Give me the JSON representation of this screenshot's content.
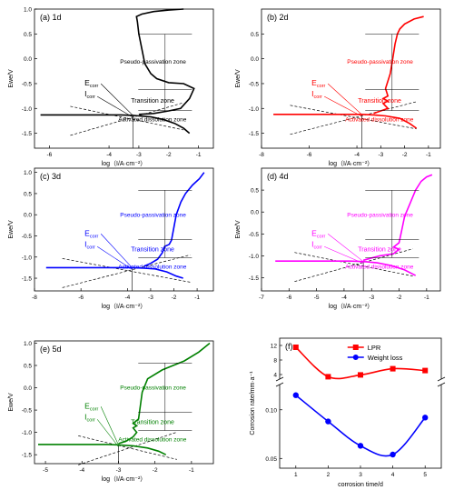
{
  "chart_data": [
    {
      "type": "line",
      "panel_label": "(a) 1d",
      "xlabel": "log（I/A·cm⁻²）",
      "ylabel": "Ewe/V",
      "xlim": [
        -6.5,
        -0.5
      ],
      "ylim": [
        -1.8,
        1.0
      ],
      "xticks": [
        -6,
        -4,
        -3,
        -2,
        -1
      ],
      "yticks": [
        -1.5,
        -1.0,
        -0.5,
        0.0,
        0.5,
        1.0
      ],
      "color": "#000000",
      "ecorr_label": "E",
      "ecorr_sub": "corr",
      "icorr_label": "I",
      "icorr_sub": "corr",
      "zones": [
        "Pseudo-passivation zone",
        "Transition zone",
        "Activated dissolution zone"
      ],
      "curve": [
        [
          -6.3,
          -1.13
        ],
        [
          -5.5,
          -1.13
        ],
        [
          -4.5,
          -1.13
        ],
        [
          -3.6,
          -1.13
        ],
        [
          -3.2,
          -1.14
        ],
        [
          -3.0,
          -1.15
        ],
        [
          -2.6,
          -1.17
        ],
        [
          -2.2,
          -1.22
        ],
        [
          -1.8,
          -1.3
        ],
        [
          -1.5,
          -1.4
        ],
        [
          -1.3,
          -1.5
        ]
      ],
      "anodic": [
        [
          -3.0,
          -1.12
        ],
        [
          -2.5,
          -1.1
        ],
        [
          -2.0,
          -1.05
        ],
        [
          -1.6,
          -1.0
        ],
        [
          -1.3,
          -0.8
        ],
        [
          -1.15,
          -0.6
        ],
        [
          -1.5,
          -0.5
        ],
        [
          -2.0,
          -0.48
        ],
        [
          -2.4,
          -0.4
        ],
        [
          -2.6,
          -0.3
        ],
        [
          -2.8,
          -0.1
        ],
        [
          -2.9,
          0.2
        ],
        [
          -3.0,
          0.5
        ],
        [
          -3.05,
          0.75
        ],
        [
          -3.08,
          0.85
        ],
        [
          -2.9,
          0.9
        ],
        [
          -2.5,
          0.95
        ],
        [
          -2.0,
          0.98
        ],
        [
          -1.5,
          1.0
        ]
      ]
    },
    {
      "type": "line",
      "panel_label": "(b) 2d",
      "xlabel": "log（I/A·cm⁻²）",
      "ylabel": "Ewe/V",
      "xlim": [
        -8,
        -0.5
      ],
      "ylim": [
        -1.8,
        1.0
      ],
      "xticks": [
        -8,
        -6,
        -4,
        -3,
        -2,
        -1
      ],
      "yticks": [
        -1.5,
        -1.0,
        -0.5,
        0.0,
        0.5
      ],
      "color": "#ff0000",
      "ecorr_label": "E",
      "ecorr_sub": "corr",
      "icorr_label": "I",
      "icorr_sub": "corr",
      "zones": [
        "Pseudo-passivation zone",
        "Transition zone",
        "Activated dissolution zone"
      ],
      "curve": [
        [
          -7.5,
          -1.12
        ],
        [
          -6.5,
          -1.12
        ],
        [
          -5.5,
          -1.12
        ],
        [
          -4.5,
          -1.12
        ],
        [
          -3.8,
          -1.12
        ],
        [
          -3.3,
          -1.13
        ],
        [
          -2.8,
          -1.15
        ],
        [
          -2.2,
          -1.2
        ],
        [
          -1.8,
          -1.3
        ],
        [
          -1.5,
          -1.4
        ]
      ],
      "anodic": [
        [
          -3.3,
          -1.1
        ],
        [
          -3.0,
          -1.05
        ],
        [
          -2.7,
          -1.0
        ],
        [
          -2.9,
          -0.9
        ],
        [
          -2.7,
          -0.85
        ],
        [
          -2.9,
          -0.8
        ],
        [
          -2.7,
          -0.75
        ],
        [
          -2.8,
          -0.6
        ],
        [
          -2.6,
          -0.3
        ],
        [
          -2.5,
          0.0
        ],
        [
          -2.4,
          0.3
        ],
        [
          -2.3,
          0.5
        ],
        [
          -2.2,
          0.6
        ],
        [
          -2.0,
          0.7
        ],
        [
          -1.6,
          0.8
        ],
        [
          -1.2,
          0.85
        ]
      ]
    },
    {
      "type": "line",
      "panel_label": "(c) 3d",
      "xlabel": "log（I/A·cm⁻²）",
      "ylabel": "Ewe/V",
      "xlim": [
        -8,
        -0.3
      ],
      "ylim": [
        -1.8,
        1.1
      ],
      "xticks": [
        -8,
        -6,
        -4,
        -3,
        -2,
        -1
      ],
      "yticks": [
        -1.5,
        -1.0,
        -0.5,
        0.0,
        0.5,
        1.0
      ],
      "color": "#0000ff",
      "ecorr_label": "E",
      "ecorr_sub": "corr",
      "icorr_label": "I",
      "icorr_sub": "corr",
      "zones": [
        "Pseudo-passivation zone",
        "Transition zone",
        "Activated dissolution zone"
      ],
      "curve": [
        [
          -7.5,
          -1.25
        ],
        [
          -6.5,
          -1.25
        ],
        [
          -5.5,
          -1.25
        ],
        [
          -4.5,
          -1.25
        ],
        [
          -3.8,
          -1.25
        ],
        [
          -3.3,
          -1.26
        ],
        [
          -2.8,
          -1.28
        ],
        [
          -2.3,
          -1.35
        ],
        [
          -1.9,
          -1.45
        ],
        [
          -1.6,
          -1.5
        ]
      ],
      "anodic": [
        [
          -3.3,
          -1.22
        ],
        [
          -3.0,
          -1.15
        ],
        [
          -2.7,
          -1.05
        ],
        [
          -2.5,
          -0.9
        ],
        [
          -2.4,
          -0.75
        ],
        [
          -2.2,
          -0.7
        ],
        [
          -2.1,
          -0.6
        ],
        [
          -2.0,
          -0.3
        ],
        [
          -1.9,
          0.0
        ],
        [
          -1.7,
          0.3
        ],
        [
          -1.5,
          0.5
        ],
        [
          -1.2,
          0.7
        ],
        [
          -0.9,
          0.85
        ],
        [
          -0.7,
          1.0
        ]
      ]
    },
    {
      "type": "line",
      "panel_label": "(d) 4d",
      "xlabel": "log（I/A·cm⁻²）",
      "ylabel": "Ewe/V",
      "xlim": [
        -7,
        -0.5
      ],
      "ylim": [
        -1.8,
        1.0
      ],
      "xticks": [
        -7,
        -6,
        -5,
        -4,
        -3,
        -2,
        -1
      ],
      "yticks": [
        -1.5,
        -1.0,
        -0.5,
        0.0,
        0.5
      ],
      "color": "#ff00ff",
      "ecorr_label": "E",
      "ecorr_sub": "corr",
      "icorr_label": "I",
      "icorr_sub": "corr",
      "zones": [
        "Pseudo-passivation zone",
        "Transition zone",
        "Activated dissolution zone"
      ],
      "curve": [
        [
          -6.5,
          -1.12
        ],
        [
          -5.5,
          -1.12
        ],
        [
          -4.5,
          -1.12
        ],
        [
          -3.8,
          -1.12
        ],
        [
          -3.3,
          -1.13
        ],
        [
          -2.8,
          -1.16
        ],
        [
          -2.3,
          -1.22
        ],
        [
          -1.8,
          -1.32
        ],
        [
          -1.4,
          -1.45
        ]
      ],
      "anodic": [
        [
          -3.3,
          -1.1
        ],
        [
          -3.0,
          -1.05
        ],
        [
          -2.7,
          -1.0
        ],
        [
          -2.2,
          -0.95
        ],
        [
          -2.0,
          -0.85
        ],
        [
          -2.2,
          -0.8
        ],
        [
          -2.0,
          -0.7
        ],
        [
          -1.9,
          -0.4
        ],
        [
          -1.8,
          -0.1
        ],
        [
          -1.6,
          0.2
        ],
        [
          -1.4,
          0.5
        ],
        [
          -1.2,
          0.7
        ],
        [
          -1.0,
          0.8
        ],
        [
          -0.8,
          0.85
        ]
      ]
    },
    {
      "type": "line",
      "panel_label": "(e) 5d",
      "xlabel": "log（I/A·cm⁻²）",
      "ylabel": "Ewe/V",
      "xlim": [
        -5.3,
        -0.4
      ],
      "ylim": [
        -1.7,
        1.05
      ],
      "xticks": [
        -5,
        -4,
        -3,
        -2,
        -1
      ],
      "yticks": [
        -1.5,
        -1.0,
        -0.5,
        0.0,
        0.5,
        1.0
      ],
      "color": "#008000",
      "ecorr_label": "E",
      "ecorr_sub": "corr",
      "icorr_label": "I",
      "icorr_sub": "corr",
      "zones": [
        "Pseudo-passivation zone",
        "Transition zone",
        "Activated dissolution zone"
      ],
      "curve": [
        [
          -5.2,
          -1.27
        ],
        [
          -4.5,
          -1.27
        ],
        [
          -3.8,
          -1.27
        ],
        [
          -3.3,
          -1.27
        ],
        [
          -3.0,
          -1.28
        ],
        [
          -2.6,
          -1.3
        ],
        [
          -2.2,
          -1.35
        ],
        [
          -1.9,
          -1.42
        ],
        [
          -1.7,
          -1.5
        ]
      ],
      "anodic": [
        [
          -3.0,
          -1.25
        ],
        [
          -2.8,
          -1.2
        ],
        [
          -2.6,
          -1.1
        ],
        [
          -2.5,
          -1.0
        ],
        [
          -2.6,
          -0.9
        ],
        [
          -2.5,
          -0.85
        ],
        [
          -2.6,
          -0.8
        ],
        [
          -2.45,
          -0.7
        ],
        [
          -2.4,
          -0.4
        ],
        [
          -2.35,
          -0.1
        ],
        [
          -2.2,
          0.2
        ],
        [
          -1.8,
          0.4
        ],
        [
          -1.2,
          0.6
        ],
        [
          -0.8,
          0.8
        ],
        [
          -0.5,
          1.0
        ]
      ]
    },
    {
      "type": "line",
      "panel_label": "(f)",
      "xlabel": "corrosion time/d",
      "ylabel": "Corrosion rate/mm·a⁻¹",
      "x": [
        1,
        2,
        3,
        4,
        5
      ],
      "xlim": [
        0.5,
        5.5
      ],
      "xticks": [
        1,
        2,
        3,
        4,
        5
      ],
      "upper": {
        "ylim": [
          3,
          14
        ],
        "yticks": [
          4,
          8,
          12
        ]
      },
      "lower": {
        "ylim": [
          0.04,
          0.125
        ],
        "yticks": [
          0.05,
          0.1
        ]
      },
      "legend_position": "top-right",
      "series": [
        {
          "name": "LPR",
          "color": "#ff0000",
          "marker": "square",
          "values": [
            11.5,
            3.4,
            3.9,
            5.6,
            5.1
          ]
        },
        {
          "name": "Weight loss",
          "color": "#0000ff",
          "marker": "circle",
          "values": [
            0.115,
            0.088,
            0.063,
            0.054,
            0.092
          ]
        }
      ]
    }
  ]
}
